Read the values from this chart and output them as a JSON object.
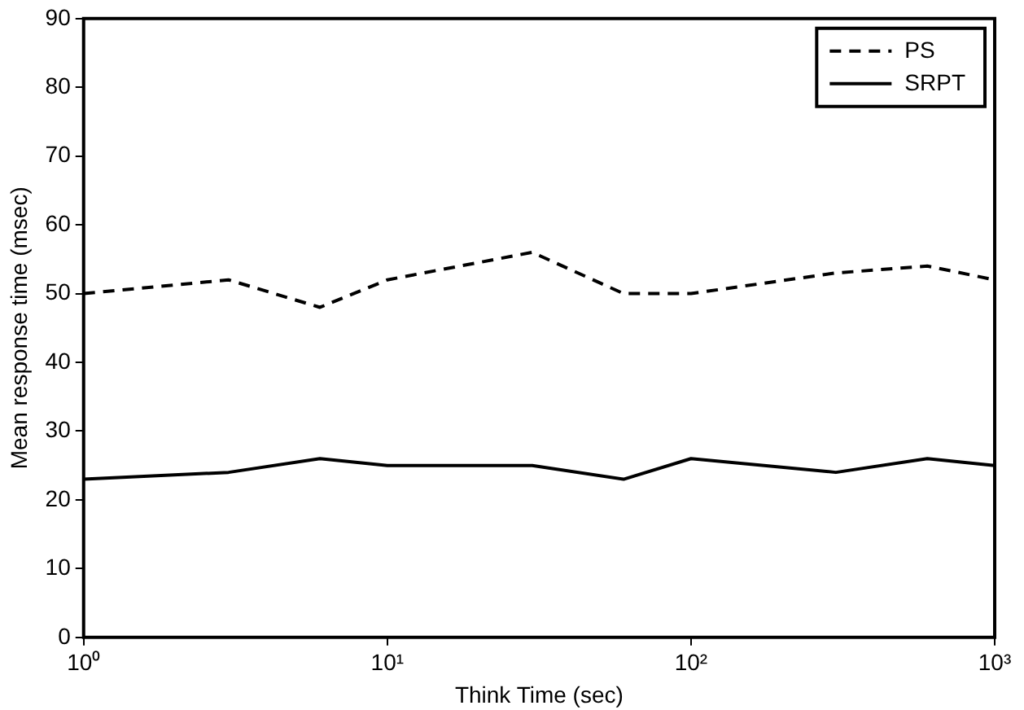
{
  "chart_data": {
    "type": "line",
    "xlabel": "Think Time (sec)",
    "ylabel": "Mean response time (msec)",
    "log": "x",
    "xlim": [
      1,
      1000
    ],
    "xticks": [
      {
        "value": 1,
        "label": "10⁰"
      },
      {
        "value": 10,
        "label": "10¹"
      },
      {
        "value": 100,
        "label": "10²"
      },
      {
        "value": 1000,
        "label": "10³"
      }
    ],
    "ylim": [
      0,
      90
    ],
    "yticks": [
      0,
      10,
      20,
      30,
      40,
      50,
      60,
      70,
      80,
      90
    ],
    "grid": false,
    "legend": "top right",
    "marker": "none",
    "series": [
      {
        "name": "PS",
        "color": "#000000",
        "line_style": "dashed",
        "x": [
          1,
          3,
          6,
          10,
          30,
          60,
          100,
          300,
          600,
          1000
        ],
        "values": [
          50,
          52,
          48,
          52,
          56,
          50,
          50,
          53,
          54,
          52
        ]
      },
      {
        "name": "SRPT",
        "color": "#000000",
        "line_style": "solid",
        "x": [
          1,
          3,
          6,
          10,
          30,
          60,
          100,
          300,
          600,
          1000
        ],
        "values": [
          23,
          24,
          26,
          25,
          25,
          23,
          26,
          24,
          26,
          25
        ]
      }
    ]
  }
}
